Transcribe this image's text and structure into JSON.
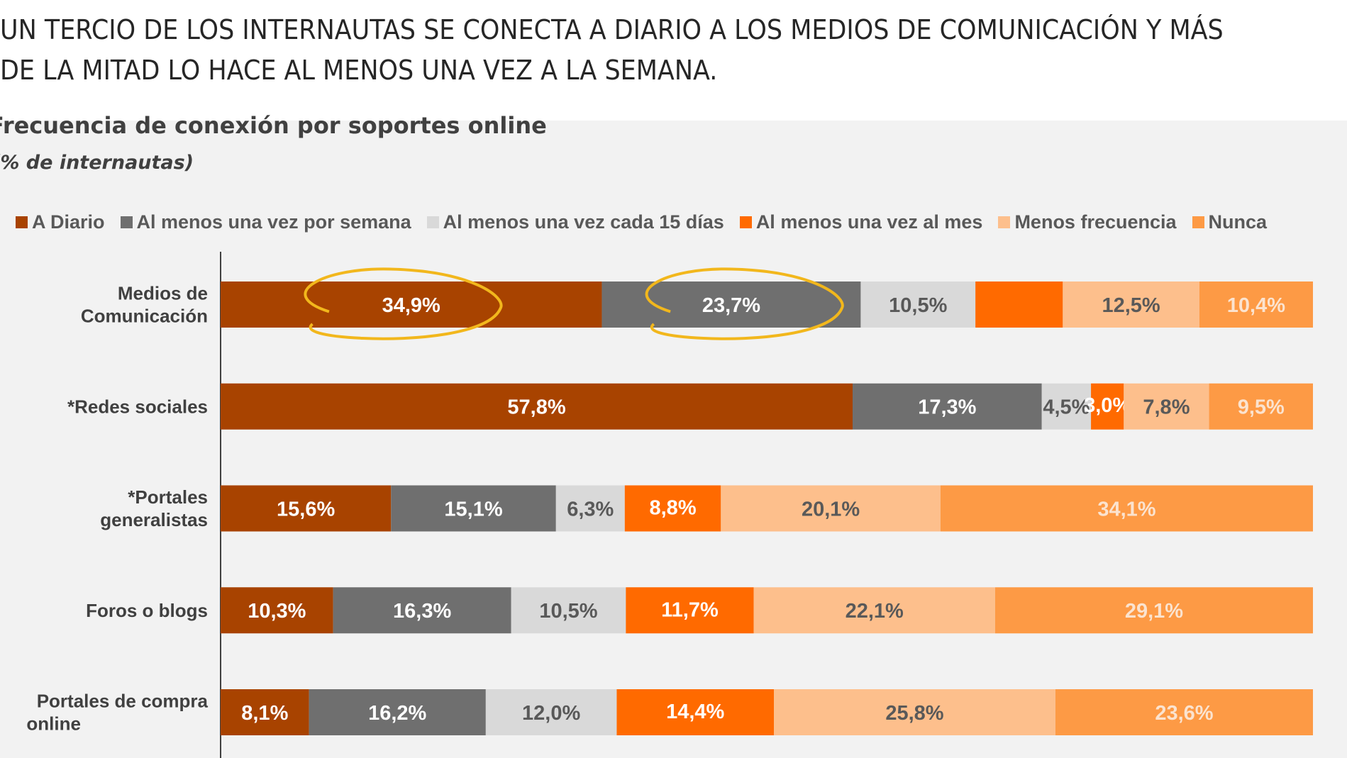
{
  "headline": {
    "line1": "UN TERCIO DE LOS INTERNAUTAS SE CONECTA A DIARIO A LOS MEDIOS DE COMUNICACIÓN Y MÁS",
    "line2": "DE LA MITAD LO HACE AL MENOS UNA VEZ A LA SEMANA."
  },
  "chart_data": {
    "type": "bar",
    "orientation": "horizontal",
    "stacked": true,
    "title": "Frecuencia de conexión por soportes online",
    "subtitle": "(% de internautas)",
    "legend_position": "top",
    "grid": false,
    "categories": [
      [
        "Medios de",
        "Comunicación"
      ],
      [
        "*Redes sociales"
      ],
      [
        "*Portales",
        "generalistas"
      ],
      [
        "Foros o blogs"
      ],
      [
        "Portales de compra",
        "online"
      ]
    ],
    "series": [
      {
        "name": "A Diario",
        "color": "#a84300",
        "label_color": "#ffffff",
        "values": [
          34.9,
          57.8,
          15.6,
          10.3,
          8.1
        ],
        "labels": [
          "34,9%",
          "57,8%",
          "15,6%",
          "10,3%",
          "8,1%"
        ]
      },
      {
        "name": "Al menos una vez por semana",
        "color": "#6f6f6f",
        "label_color": "#ffffff",
        "values": [
          23.7,
          17.3,
          15.1,
          16.3,
          16.2
        ],
        "labels": [
          "23,7%",
          "17,3%",
          "15,1%",
          "16,3%",
          "16,2%"
        ]
      },
      {
        "name": "Al menos una vez cada 15 días",
        "color": "#d9d9d9",
        "label_color": "#595959",
        "values": [
          10.5,
          4.5,
          6.3,
          10.5,
          12.0
        ],
        "labels": [
          "10,5%",
          "4,5%",
          "6,3%",
          "10,5%",
          "12,0%"
        ]
      },
      {
        "name": "Al menos una vez al mes",
        "color": "#ff6a00",
        "label_color": "#ffffff",
        "values": [
          8.0,
          3.0,
          8.8,
          11.7,
          14.4
        ],
        "labels": [
          "",
          "3,0%",
          "8,8%",
          "11,7%",
          "14,4%"
        ]
      },
      {
        "name": "Menos frecuencia",
        "color": "#fdbf8c",
        "label_color": "#595959",
        "values": [
          12.5,
          7.8,
          20.1,
          22.1,
          25.8
        ],
        "labels": [
          "12,5%",
          "7,8%",
          "20,1%",
          "22,1%",
          "25,8%"
        ]
      },
      {
        "name": "Nunca",
        "color": "#fd9a45",
        "label_color": "#fbe3cf",
        "values": [
          10.4,
          9.5,
          34.1,
          29.1,
          23.6
        ],
        "labels": [
          "10,4%",
          "9,5%",
          "34,1%",
          "29,1%",
          "23,6%"
        ]
      }
    ],
    "highlights": [
      {
        "category_index": 0,
        "series_index": 0,
        "color": "#f2b71c"
      },
      {
        "category_index": 0,
        "series_index": 1,
        "color": "#f2b71c"
      }
    ]
  }
}
